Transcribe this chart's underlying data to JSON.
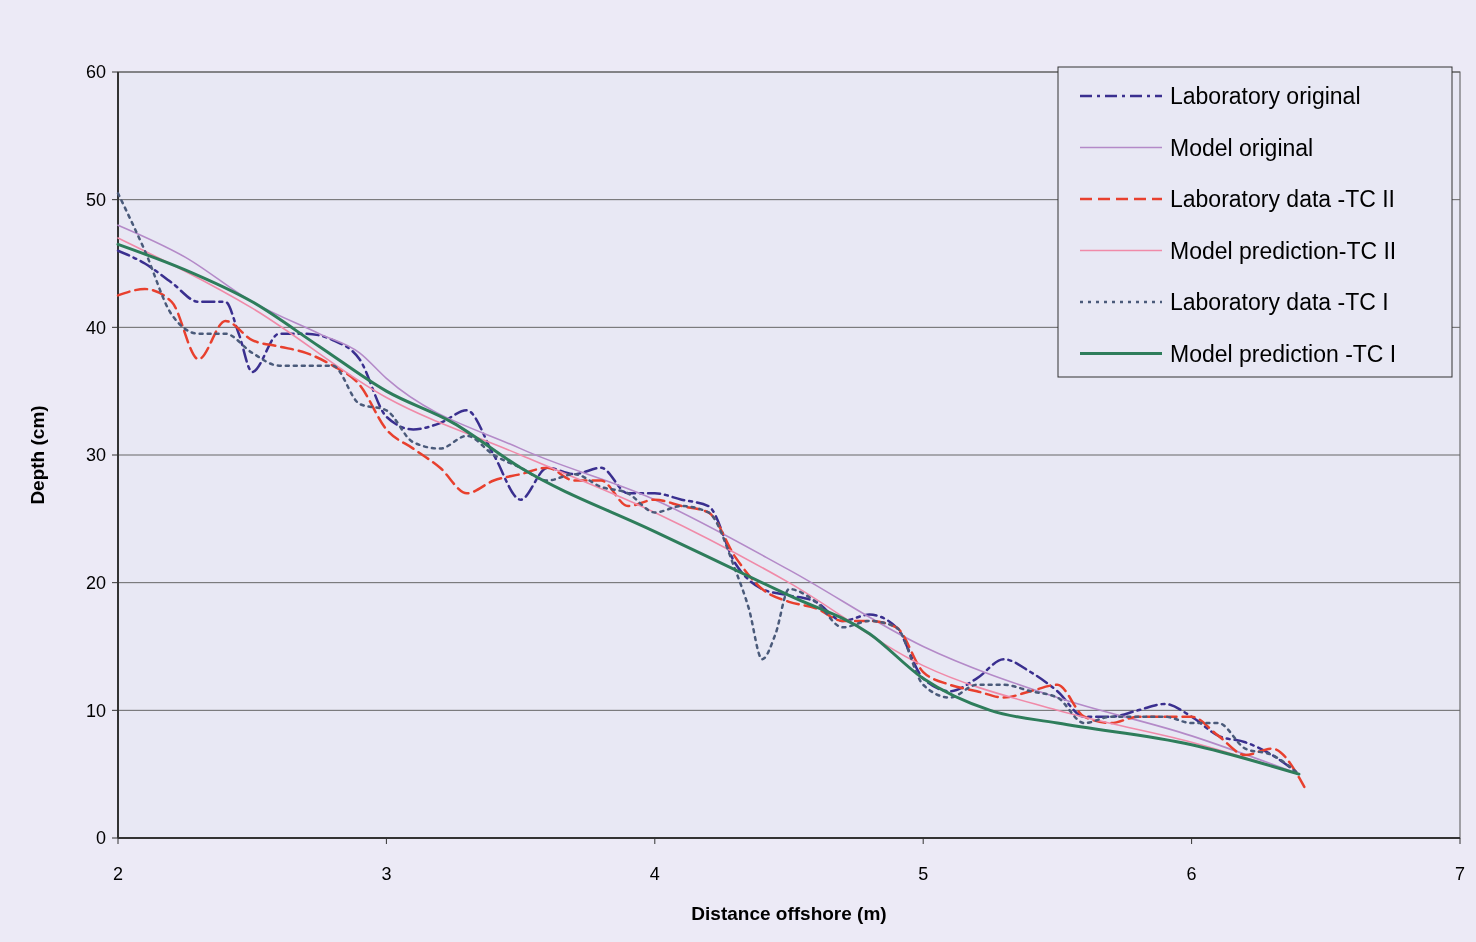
{
  "chart_data": {
    "type": "line",
    "xlabel": "Distance offshore (m)",
    "ylabel": "Depth (cm)",
    "xlim": [
      2,
      7
    ],
    "ylim": [
      0,
      60
    ],
    "xticks": [
      2,
      3,
      4,
      5,
      6,
      7
    ],
    "yticks": [
      0,
      10,
      20,
      30,
      40,
      50,
      60
    ],
    "grid": "y",
    "legend": "top right",
    "marker": "none",
    "series": [
      {
        "name": "Laboratory original",
        "color": "#3a2f8f",
        "line_style": "dashdot",
        "x": [
          2.0,
          2.1,
          2.2,
          2.3,
          2.4,
          2.45,
          2.5,
          2.6,
          2.7,
          2.8,
          2.9,
          3.0,
          3.1,
          3.2,
          3.3,
          3.4,
          3.5,
          3.6,
          3.7,
          3.8,
          3.9,
          4.0,
          4.1,
          4.2,
          4.3,
          4.4,
          4.5,
          4.6,
          4.7,
          4.8,
          4.9,
          5.0,
          5.1,
          5.2,
          5.3,
          5.4,
          5.5,
          5.6,
          5.7,
          5.8,
          5.9,
          6.0,
          6.1,
          6.2,
          6.3,
          6.4
        ],
        "values": [
          46,
          45,
          43.5,
          42,
          42,
          39.5,
          36.5,
          39.5,
          39.5,
          39,
          37.5,
          33,
          32,
          32.5,
          33.5,
          30,
          26.5,
          29,
          28.5,
          29,
          27,
          27,
          26.5,
          26,
          21.5,
          19.5,
          19,
          18.5,
          17,
          17.5,
          16.5,
          12.5,
          11.5,
          12.5,
          14,
          13,
          11.5,
          9.5,
          9.5,
          10,
          10.5,
          9.5,
          8,
          7.5,
          6.5,
          5
        ]
      },
      {
        "name": "Model original",
        "color": "#b48ac8",
        "line_style": "solid",
        "x": [
          2.0,
          2.25,
          2.5,
          2.75,
          2.9,
          3.0,
          3.5,
          4.0,
          4.5,
          5.0,
          5.5,
          6.0,
          6.4
        ],
        "values": [
          48,
          45.5,
          42,
          39.5,
          38,
          36,
          30.5,
          26.5,
          21,
          15,
          11,
          8,
          5
        ]
      },
      {
        "name": "Laboratory data -TC II",
        "color": "#e8402e",
        "line_style": "dashed",
        "x": [
          2.0,
          2.1,
          2.2,
          2.3,
          2.4,
          2.5,
          2.6,
          2.7,
          2.8,
          2.9,
          3.0,
          3.1,
          3.2,
          3.3,
          3.4,
          3.5,
          3.6,
          3.7,
          3.8,
          3.9,
          4.0,
          4.1,
          4.2,
          4.3,
          4.4,
          4.5,
          4.6,
          4.7,
          4.8,
          4.9,
          5.0,
          5.1,
          5.2,
          5.3,
          5.4,
          5.5,
          5.6,
          5.7,
          5.8,
          5.9,
          6.0,
          6.1,
          6.2,
          6.3,
          6.42
        ],
        "values": [
          42.5,
          43,
          42,
          37.5,
          40.5,
          39,
          38.5,
          38,
          37,
          35.5,
          32,
          30.5,
          29,
          27,
          28,
          28.5,
          29,
          28,
          28,
          26,
          26.5,
          26,
          25.5,
          22,
          19.5,
          18.5,
          18,
          17,
          17,
          16.5,
          13,
          12,
          11.5,
          11,
          11.5,
          12,
          9.5,
          9,
          9.5,
          9.5,
          9.5,
          8,
          6.5,
          7,
          4
        ]
      },
      {
        "name": "Model prediction-TC II",
        "color": "#f08aa8",
        "line_style": "solid",
        "x": [
          2.0,
          2.5,
          3.0,
          3.5,
          4.0,
          4.5,
          5.0,
          5.5,
          6.0,
          6.4
        ],
        "values": [
          47,
          41.5,
          34.5,
          30,
          25.5,
          20,
          13.5,
          10,
          7.5,
          5
        ]
      },
      {
        "name": "Laboratory data -TC I",
        "color": "#4a5a7a",
        "line_style": "dotted",
        "x": [
          2.0,
          2.1,
          2.2,
          2.3,
          2.4,
          2.5,
          2.6,
          2.7,
          2.8,
          2.9,
          3.0,
          3.1,
          3.2,
          3.3,
          3.4,
          3.5,
          3.6,
          3.7,
          3.8,
          3.9,
          4.0,
          4.1,
          4.2,
          4.3,
          4.35,
          4.4,
          4.45,
          4.5,
          4.6,
          4.7,
          4.8,
          4.9,
          5.0,
          5.1,
          5.2,
          5.3,
          5.4,
          5.5,
          5.6,
          5.7,
          5.8,
          5.9,
          6.0,
          6.1,
          6.2,
          6.3,
          6.4
        ],
        "values": [
          50.5,
          46,
          41,
          39.5,
          39.5,
          38,
          37,
          37,
          37,
          34,
          33.5,
          31,
          30.5,
          31.5,
          30,
          29,
          28,
          28.5,
          27.5,
          27,
          25.5,
          26,
          25.5,
          21,
          18,
          14,
          16,
          19.5,
          18.5,
          16.5,
          17,
          16.5,
          12,
          11,
          12,
          12,
          11.5,
          11,
          9,
          9.5,
          9.5,
          9.5,
          9,
          9,
          7,
          6.5,
          5
        ]
      },
      {
        "name": "Model prediction -TC I",
        "color": "#2e7d5b",
        "line_style": "solid",
        "x": [
          2.0,
          2.25,
          2.5,
          2.75,
          3.0,
          3.25,
          3.5,
          4.0,
          4.5,
          4.8,
          5.0,
          5.25,
          5.5,
          6.0,
          6.4
        ],
        "values": [
          46.5,
          44.5,
          42,
          38.5,
          35,
          32.5,
          29,
          24,
          19,
          16,
          12.5,
          10,
          9,
          7.3,
          5
        ]
      }
    ]
  }
}
